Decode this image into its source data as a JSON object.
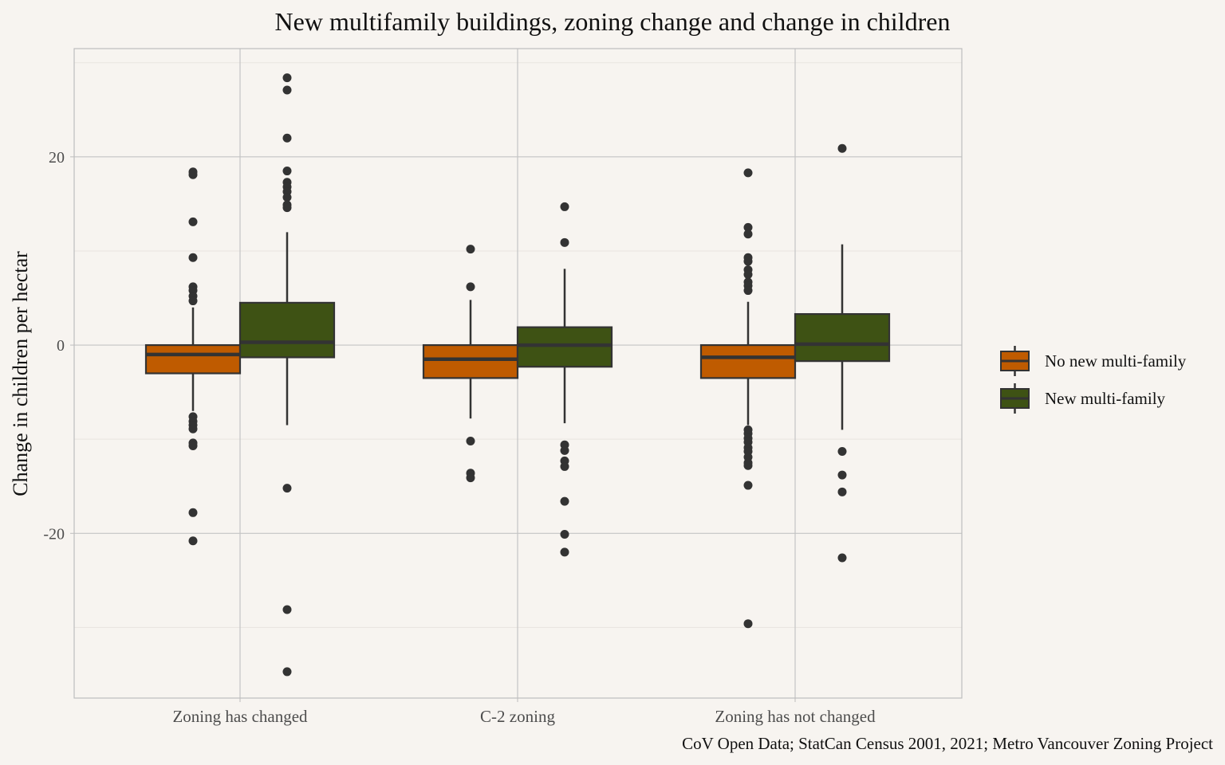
{
  "chart_data": {
    "type": "boxplot",
    "title": "New multifamily buildings, zoning change and change in children",
    "xlabel": "",
    "ylabel": "Change in children per hectar",
    "caption": "CoV Open Data; StatCan Census 2001, 2021; Metro Vancouver Zoning Project",
    "ylim": [
      -37.5,
      31.5
    ],
    "yticks": [
      -20,
      0,
      20
    ],
    "ytick_labels": [
      "-20",
      "0",
      "20"
    ],
    "minor_yticks": [
      -30,
      -10,
      10,
      30
    ],
    "grid": true,
    "legend_position": "right",
    "categories": [
      "Zoning has changed",
      "C-2 zoning",
      "Zoning has not changed"
    ],
    "series": [
      {
        "name": "No new multi-family",
        "color": "#bf5b00",
        "boxes": [
          {
            "q1": -3.0,
            "median": -1.0,
            "q3": 0.0,
            "whisker_low": -7.0,
            "whisker_high": 4.0,
            "outliers": [
              18.4,
              18.1,
              13.1,
              9.3,
              6.2,
              5.8,
              5.2,
              4.7,
              -7.6,
              -8.1,
              -8.5,
              -8.9,
              -10.4,
              -10.7,
              -17.8,
              -20.8
            ]
          },
          {
            "q1": -3.5,
            "median": -1.5,
            "q3": 0.0,
            "whisker_low": -7.8,
            "whisker_high": 4.8,
            "outliers": [
              10.2,
              6.2,
              -10.2,
              -13.6,
              -14.1
            ]
          },
          {
            "q1": -3.5,
            "median": -1.3,
            "q3": 0.0,
            "whisker_low": -8.5,
            "whisker_high": 4.6,
            "outliers": [
              18.3,
              12.5,
              11.8,
              9.3,
              8.9,
              8.0,
              7.5,
              6.7,
              6.3,
              5.8,
              -9.0,
              -9.4,
              -9.9,
              -10.3,
              -10.9,
              -11.3,
              -11.9,
              -12.5,
              -12.8,
              -14.9,
              -29.6
            ]
          }
        ]
      },
      {
        "name": "New multi-family",
        "color": "#3e5214",
        "boxes": [
          {
            "q1": -1.3,
            "median": 0.3,
            "q3": 4.5,
            "whisker_low": -8.5,
            "whisker_high": 12.0,
            "outliers": [
              28.4,
              27.1,
              22.0,
              18.5,
              17.3,
              16.8,
              16.3,
              15.7,
              14.9,
              14.6,
              -15.2,
              -28.1,
              -34.7
            ]
          },
          {
            "q1": -2.3,
            "median": 0.0,
            "q3": 1.9,
            "whisker_low": -8.3,
            "whisker_high": 8.1,
            "outliers": [
              14.7,
              10.9,
              -10.6,
              -11.2,
              -12.3,
              -12.9,
              -16.6,
              -20.1,
              -22.0
            ]
          },
          {
            "q1": -1.7,
            "median": 0.1,
            "q3": 3.3,
            "whisker_low": -9.0,
            "whisker_high": 10.7,
            "outliers": [
              20.9,
              -11.3,
              -13.8,
              -15.6,
              -22.6
            ]
          }
        ]
      }
    ]
  }
}
